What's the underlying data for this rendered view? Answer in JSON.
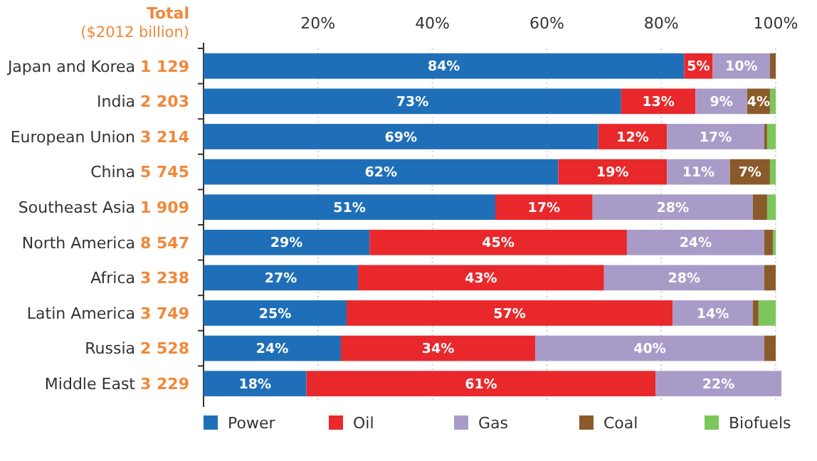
{
  "chart_data": {
    "type": "bar",
    "orientation": "horizontal",
    "stacked": true,
    "categories": [
      "Japan and Korea",
      "India",
      "European Union",
      "China",
      "Southeast Asia",
      "North America",
      "Africa",
      "Latin America",
      "Russia",
      "Middle East"
    ],
    "series": [
      {
        "name": "Power",
        "color": "#1f6fb8",
        "values": [
          84,
          73,
          69,
          62,
          51,
          29,
          27,
          25,
          24,
          18
        ],
        "value_labels": [
          "84%",
          "73%",
          "69%",
          "62%",
          "51%",
          "29%",
          "27%",
          "25%",
          "24%",
          "18%"
        ]
      },
      {
        "name": "Oil",
        "color": "#e8282b",
        "values": [
          5,
          13,
          12,
          19,
          17,
          45,
          43,
          57,
          34,
          61
        ],
        "value_labels": [
          "5%",
          "13%",
          "12%",
          "19%",
          "17%",
          "45%",
          "43%",
          "57%",
          "34%",
          "61%"
        ]
      },
      {
        "name": "Gas",
        "color": "#a99bc8",
        "values": [
          10,
          9,
          17,
          11,
          28,
          24,
          28,
          14,
          40,
          22
        ],
        "value_labels": [
          "10%",
          "9%",
          "17%",
          "11%",
          "28%",
          "24%",
          "28%",
          "14%",
          "40%",
          "22%"
        ]
      },
      {
        "name": "Coal",
        "color": "#8b5a2b",
        "values": [
          1,
          4,
          0.5,
          7,
          2.5,
          1.5,
          2,
          1,
          2,
          0
        ],
        "value_labels": [
          null,
          "4%",
          null,
          "7%",
          null,
          null,
          null,
          null,
          null,
          null
        ]
      },
      {
        "name": "Biofuels",
        "color": "#7cc65c",
        "values": [
          0,
          1,
          1.5,
          1,
          1.5,
          0.5,
          0,
          3,
          0,
          0
        ],
        "value_labels": [
          null,
          null,
          null,
          null,
          null,
          null,
          null,
          null,
          null,
          null
        ]
      }
    ],
    "xlim": [
      0,
      101
    ],
    "xticks": [
      {
        "value": 20,
        "label": "20%"
      },
      {
        "value": 40,
        "label": "40%"
      },
      {
        "value": 60,
        "label": "60%"
      },
      {
        "value": 80,
        "label": "80%"
      },
      {
        "value": 100,
        "label": "100%"
      }
    ],
    "grid": "x",
    "legend": "bottom",
    "annotations": [
      "Total",
      "($2012 billion)",
      "1 129",
      "2 203",
      "3 214",
      "5 745",
      "1 909",
      "8 547",
      "3 238",
      "3 749",
      "2 528",
      "3 229"
    ]
  }
}
